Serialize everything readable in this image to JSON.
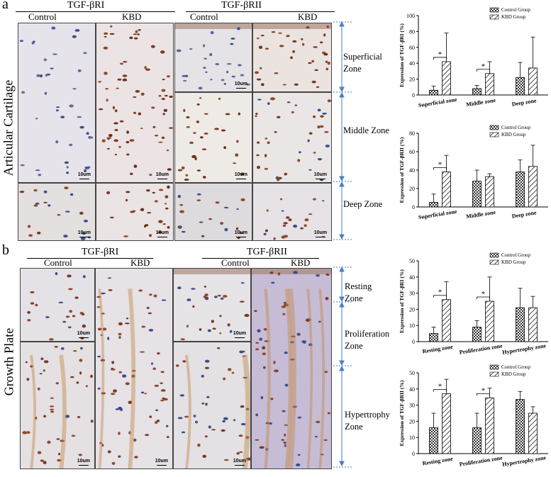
{
  "panels": {
    "a": {
      "letter": "a",
      "side_label": "Articular Cartilage",
      "headers": {
        "tgf_r1": "TGF-βRI",
        "tgf_r2": "TGF-βRII",
        "control1": "Control",
        "kbd1": "KBD",
        "control2": "Control",
        "kbd2": "KBD"
      },
      "zones": {
        "superficial": [
          "Superficial",
          "Zone"
        ],
        "middle": [
          "Middle Zone"
        ],
        "deep": [
          "Deep Zone"
        ]
      },
      "scale": "10um"
    },
    "b": {
      "letter": "b",
      "side_label": "Growth Plate",
      "headers": {
        "tgf_r1": "TGF-βRI",
        "tgf_r2": "TGF-βRII",
        "control1": "Control",
        "kbd1": "KBD",
        "control2": "Control",
        "kbd2": "KBD"
      },
      "zones": {
        "resting": [
          "Resting",
          "Zone"
        ],
        "proliferation": [
          "Proliferation",
          "Zone"
        ],
        "hypertrophy": [
          "Hypertrophy",
          "Zone"
        ]
      },
      "scale": "10um"
    }
  },
  "chart_data": [
    {
      "type": "bar",
      "ylabel": "Expression of TGF-βRI (%)",
      "categories": [
        "Superficial zone",
        "Middle zone",
        "Deep zone"
      ],
      "ylim": [
        0,
        100
      ],
      "yticks": [
        0,
        20,
        40,
        60,
        80,
        100
      ],
      "legend_position": "top-right",
      "series": [
        {
          "name": "Control Group",
          "values": [
            6,
            8,
            22
          ],
          "errors": [
            5,
            4,
            19
          ]
        },
        {
          "name": "KBD Group",
          "values": [
            42,
            27,
            34
          ],
          "errors": [
            36,
            15,
            39
          ]
        }
      ],
      "significance": [
        {
          "category": 0,
          "label": "*"
        },
        {
          "category": 1,
          "label": "*"
        }
      ]
    },
    {
      "type": "bar",
      "ylabel": "Expression of TGF-βRII (%)",
      "categories": [
        "Superficial zone",
        "Middle zone",
        "Deep zone"
      ],
      "ylim": [
        0,
        80
      ],
      "yticks": [
        0,
        20,
        40,
        60,
        80
      ],
      "legend_position": "top-right",
      "series": [
        {
          "name": "Control Group",
          "values": [
            5,
            28,
            38
          ],
          "errors": [
            9,
            12,
            13
          ]
        },
        {
          "name": "KBD Group",
          "values": [
            38,
            33,
            44
          ],
          "errors": [
            18,
            3,
            23
          ]
        }
      ],
      "significance": [
        {
          "category": 0,
          "label": "*"
        }
      ]
    },
    {
      "type": "bar",
      "ylabel": "Expression of TGF-βRI (%)",
      "categories": [
        "Resting zone",
        "Proliferation zone",
        "Hypertrophy zone"
      ],
      "ylim": [
        0,
        50
      ],
      "yticks": [
        0,
        10,
        20,
        30,
        40,
        50
      ],
      "legend_position": "top-right",
      "series": [
        {
          "name": "Control Group",
          "values": [
            5,
            9,
            21
          ],
          "errors": [
            4,
            4,
            12
          ]
        },
        {
          "name": "KBD Group",
          "values": [
            26,
            25,
            21
          ],
          "errors": [
            11,
            15,
            7
          ]
        }
      ],
      "significance": [
        {
          "category": 0,
          "label": "*"
        },
        {
          "category": 1,
          "label": "*"
        }
      ]
    },
    {
      "type": "bar",
      "ylabel": "Expression of TGF-βRII (%)",
      "categories": [
        "Resting zone",
        "Proliferation zone",
        "Hypertrophy zone"
      ],
      "ylim": [
        0,
        50
      ],
      "yticks": [
        0,
        10,
        20,
        30,
        40,
        50
      ],
      "legend_position": "top-right",
      "series": [
        {
          "name": "Control Group",
          "values": [
            16,
            16,
            33.5
          ],
          "errors": [
            9,
            9,
            5
          ]
        },
        {
          "name": "KBD Group",
          "values": [
            37,
            34.5,
            25
          ],
          "errors": [
            9,
            6,
            4
          ]
        }
      ],
      "significance": [
        {
          "category": 0,
          "label": "*"
        },
        {
          "category": 1,
          "label": "*"
        }
      ]
    }
  ]
}
